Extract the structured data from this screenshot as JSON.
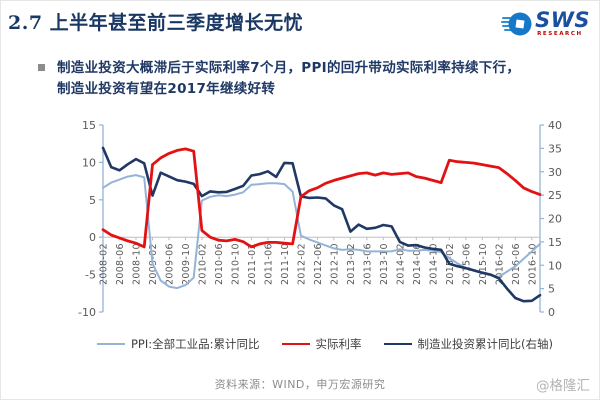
{
  "slide": {
    "title": "2.7 上半年甚至前三季度增长无忧",
    "logo": {
      "text": "SWS",
      "subtext": "RESEARCH"
    },
    "bullet_lines": [
      "制造业投资大概滞后于实际利率7个月，PPI的回升带动实际利率持续下行，",
      "制造业投资有望在2017年继续好转"
    ],
    "source_note": "资料来源：WIND，申万宏源研究",
    "watermark": "@格隆汇"
  },
  "colors": {
    "title_navy": "#1a3864",
    "ppi_line": "#95b3d7",
    "real_rate_line": "#e31212",
    "mfg_line": "#1f3864",
    "value_axis_line": "#95b3d7",
    "category_axis_line": "#bfbfbf",
    "tick_label": "#595959",
    "brand_blue": "#1778c8",
    "brand_red": "#c00000"
  },
  "chart_data": {
    "type": "line",
    "title": "",
    "grid": false,
    "legend_position": "bottom",
    "x": [
      "2008-02",
      "2008-04",
      "2008-06",
      "2008-08",
      "2008-10",
      "2008-12",
      "2009-02",
      "2009-04",
      "2009-06",
      "2009-08",
      "2009-10",
      "2009-12",
      "2010-02",
      "2010-04",
      "2010-06",
      "2010-08",
      "2010-10",
      "2010-12",
      "2011-02",
      "2011-04",
      "2011-06",
      "2011-08",
      "2011-10",
      "2011-12",
      "2012-02",
      "2012-04",
      "2012-06",
      "2012-08",
      "2012-10",
      "2012-12",
      "2013-02",
      "2013-04",
      "2013-06",
      "2013-08",
      "2013-10",
      "2013-12",
      "2014-02",
      "2014-04",
      "2014-06",
      "2014-08",
      "2014-10",
      "2014-12",
      "2015-02",
      "2015-04",
      "2015-06",
      "2015-08",
      "2015-10",
      "2015-12",
      "2016-02",
      "2016-04",
      "2016-06",
      "2016-08",
      "2016-10",
      "2016-12"
    ],
    "x_tick_labels": [
      "2008-02",
      "2008-06",
      "2008-10",
      "2009-02",
      "2009-06",
      "2009-10",
      "2010-02",
      "2010-06",
      "2010-10",
      "2011-02",
      "2011-06",
      "2011-10",
      "2012-02",
      "2012-06",
      "2012-10",
      "2013-02",
      "2013-06",
      "2013-10",
      "2014-02",
      "2014-06",
      "2014-10",
      "2015-02",
      "2015-06",
      "2015-10",
      "2016-02",
      "2016-06",
      "2016-10"
    ],
    "left_axis": {
      "min": -10,
      "max": 15,
      "ticks": [
        15,
        10,
        5,
        0,
        -5,
        -10
      ]
    },
    "right_axis": {
      "min": 0,
      "max": 40,
      "ticks": [
        40,
        35,
        30,
        25,
        20,
        15,
        10,
        5,
        0
      ]
    },
    "series": [
      {
        "name": "PPI:全部工业品:累计同比",
        "axis": "left",
        "color": "#95b3d7",
        "width": 2,
        "values": [
          6.6,
          7.3,
          7.7,
          8.1,
          8.3,
          8.0,
          -3.5,
          -5.8,
          -6.6,
          -6.8,
          -6.4,
          -5.4,
          4.9,
          5.4,
          5.6,
          5.5,
          5.7,
          6.0,
          7.0,
          7.1,
          7.2,
          7.2,
          7.1,
          6.1,
          0.2,
          -0.3,
          -0.7,
          -1.1,
          -1.5,
          -1.7,
          -1.6,
          -1.7,
          -1.9,
          -1.9,
          -1.9,
          -1.9,
          -1.6,
          -1.8,
          -1.8,
          -1.7,
          -1.8,
          -2.0,
          -2.8,
          -3.5,
          -4.1,
          -4.5,
          -4.8,
          -5.1,
          -5.3,
          -4.6,
          -3.9,
          -2.9,
          -1.9,
          -0.9
        ]
      },
      {
        "name": "实际利率",
        "axis": "left",
        "color": "#e31212",
        "width": 2.8,
        "values": [
          1.0,
          0.3,
          -0.1,
          -0.5,
          -0.8,
          -1.3,
          9.7,
          10.6,
          11.2,
          11.6,
          11.8,
          11.5,
          0.9,
          0.0,
          -0.4,
          -0.5,
          -0.3,
          -0.6,
          -1.3,
          -0.9,
          -0.7,
          -0.7,
          -0.8,
          -0.9,
          5.4,
          6.2,
          6.6,
          7.2,
          7.6,
          7.9,
          8.2,
          8.5,
          8.6,
          8.3,
          8.6,
          8.4,
          8.5,
          8.6,
          8.1,
          7.9,
          7.6,
          7.3,
          10.3,
          10.1,
          10.0,
          9.9,
          9.7,
          9.5,
          9.3,
          8.5,
          7.6,
          6.6,
          6.1,
          5.7
        ]
      },
      {
        "name": "制造业投资累计同比(右轴)",
        "axis": "right",
        "color": "#1f3864",
        "width": 2.6,
        "values": [
          35.1,
          31.0,
          30.3,
          31.6,
          32.7,
          31.8,
          24.9,
          29.8,
          29.0,
          28.2,
          27.9,
          27.4,
          24.8,
          25.8,
          25.6,
          25.7,
          26.3,
          27.0,
          29.2,
          29.5,
          30.1,
          28.9,
          31.9,
          31.8,
          24.7,
          24.4,
          24.5,
          24.3,
          22.8,
          22.0,
          17.2,
          18.7,
          17.8,
          18.0,
          18.6,
          18.3,
          15.0,
          14.2,
          14.3,
          13.8,
          13.5,
          13.3,
          10.3,
          9.8,
          9.4,
          8.9,
          8.4,
          8.0,
          7.2,
          5.0,
          3.0,
          2.3,
          2.4,
          3.6
        ]
      }
    ]
  }
}
